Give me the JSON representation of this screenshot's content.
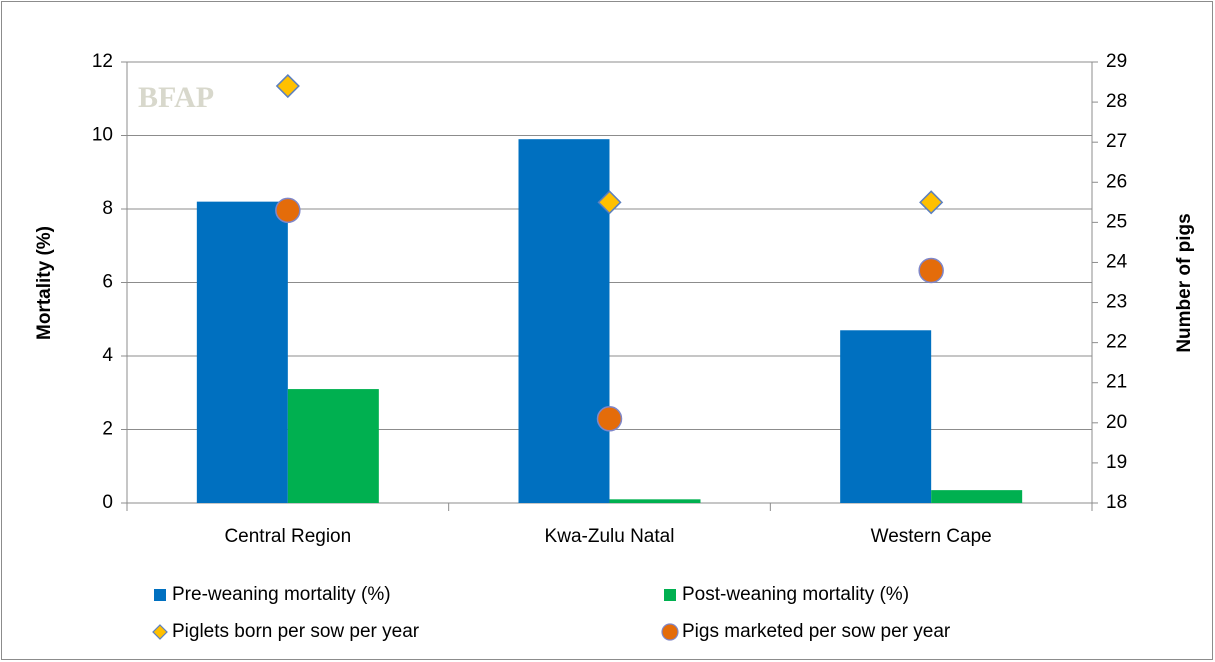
{
  "chart_data": {
    "type": "bar",
    "watermark": "BFAP",
    "ylabel": "Mortality (%)",
    "y2label": "Number of pigs",
    "categories": [
      "Central Region",
      "Kwa-Zulu Natal",
      "Western Cape"
    ],
    "ylim": [
      0,
      12
    ],
    "yticks": [
      0,
      2,
      4,
      6,
      8,
      10,
      12
    ],
    "y2lim": [
      18,
      29
    ],
    "y2ticks": [
      18,
      19,
      20,
      21,
      22,
      23,
      24,
      25,
      26,
      27,
      28,
      29
    ],
    "grid": true,
    "legend": "bottom",
    "series": [
      {
        "name": "Pre-weaning mortality (%)",
        "kind": "bar",
        "color": "#0070c0",
        "values": [
          8.2,
          9.9,
          4.7
        ]
      },
      {
        "name": "Post-weaning mortality (%)",
        "kind": "bar",
        "color": "#00b050",
        "values": [
          3.1,
          0.1,
          0.35
        ]
      },
      {
        "name": "Piglets born per sow per year",
        "kind": "marker",
        "marker": "diamond",
        "color": "#ffc000",
        "edgecolor": "#5b7fc0",
        "axis": "y2",
        "values": [
          28.4,
          25.5,
          25.5
        ]
      },
      {
        "name": "Pigs marketed per sow per year",
        "kind": "marker",
        "marker": "circle",
        "color": "#e46c0a",
        "edgecolor": "#7f86c8",
        "axis": "y2",
        "values": [
          25.3,
          20.1,
          23.8
        ]
      }
    ]
  }
}
